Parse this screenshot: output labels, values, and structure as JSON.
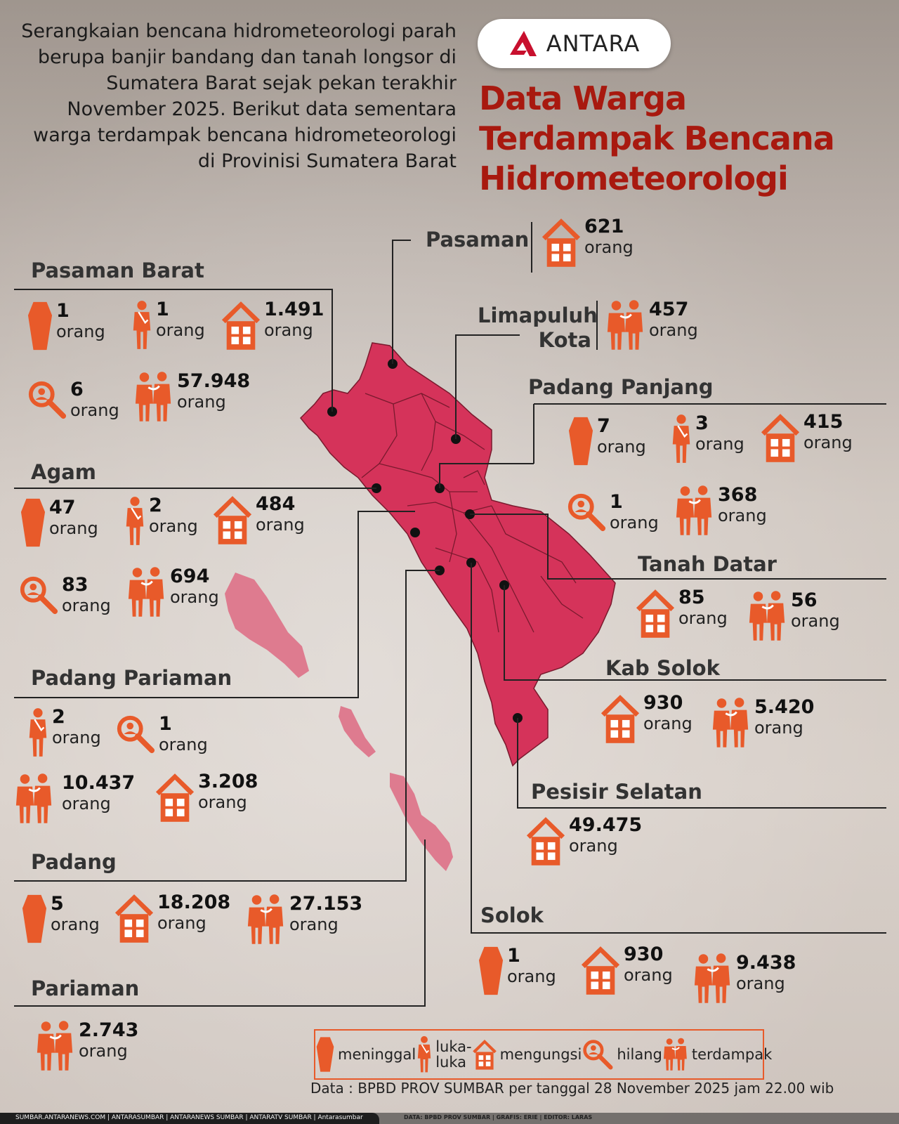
{
  "intro": "Serangkaian bencana hidrometeorologi parah berupa banjir bandang dan tanah longsor di Sumatera Barat sejak pekan terakhir November 2025. Berikut data sementara warga terdampak bencana hidrometeorologi di Provinisi Sumatera Barat",
  "logo": "ANTARA",
  "title": [
    "Data Warga",
    "Terdampak Bencana",
    "Hidrometeorologi"
  ],
  "colors": {
    "accent": "#e85a2a",
    "title": "#a8190f",
    "map": "#d5335a",
    "islands": "#de7b8f"
  },
  "unit": "orang",
  "regions": {
    "pasaman_barat": {
      "name": "Pasaman Barat",
      "meninggal": "1",
      "luka": "1",
      "mengungsi": "1.491",
      "hilang": "6",
      "terdampak": "57.948"
    },
    "agam": {
      "name": "Agam",
      "meninggal": "47",
      "luka": "2",
      "mengungsi": "484",
      "hilang": "83",
      "terdampak": "694"
    },
    "padang_pariaman": {
      "name": "Padang Pariaman",
      "luka": "2",
      "hilang": "1",
      "terdampak": "10.437",
      "mengungsi": "3.208"
    },
    "padang": {
      "name": "Padang",
      "meninggal": "5",
      "mengungsi": "18.208",
      "terdampak": "27.153"
    },
    "pariaman": {
      "name": "Pariaman",
      "terdampak": "2.743"
    },
    "pasaman": {
      "name": "Pasaman",
      "mengungsi": "621"
    },
    "limapuluh_kota": {
      "name1": "Limapuluh",
      "name2": "Kota",
      "terdampak": "457"
    },
    "padang_panjang": {
      "name": "Padang Panjang",
      "meninggal": "7",
      "luka": "3",
      "mengungsi": "415",
      "hilang": "1",
      "terdampak": "368"
    },
    "tanah_datar": {
      "name": "Tanah Datar",
      "mengungsi": "85",
      "terdampak": "56"
    },
    "kab_solok": {
      "name": "Kab Solok",
      "mengungsi": "930",
      "terdampak": "5.420"
    },
    "pesisir_selatan": {
      "name": "Pesisir Selatan",
      "mengungsi": "49.475"
    },
    "solok": {
      "name": "Solok",
      "meninggal": "1",
      "mengungsi": "930",
      "terdampak": "9.438"
    }
  },
  "legend": {
    "meninggal": "meninggal",
    "luka": "luka-\nluka",
    "luka1": "luka-",
    "luka2": "luka",
    "mengungsi": "mengungsi",
    "hilang": "hilang",
    "terdampak": "terdampak"
  },
  "source": "Data : BPBD PROV SUMBAR per tanggal 28 November 2025 jam 22.00 wib",
  "footer": {
    "links": "SUMBAR.ANTARANEWS.COM  |  ANTARASUMBAR  |  ANTARANEWS SUMBAR  |  ANTARATV SUMBAR  |  Antarasumbar",
    "credits": "DATA: BPBD PROV SUMBAR    |    GRAFIS: ERIE    |    EDITOR: LARAS"
  }
}
